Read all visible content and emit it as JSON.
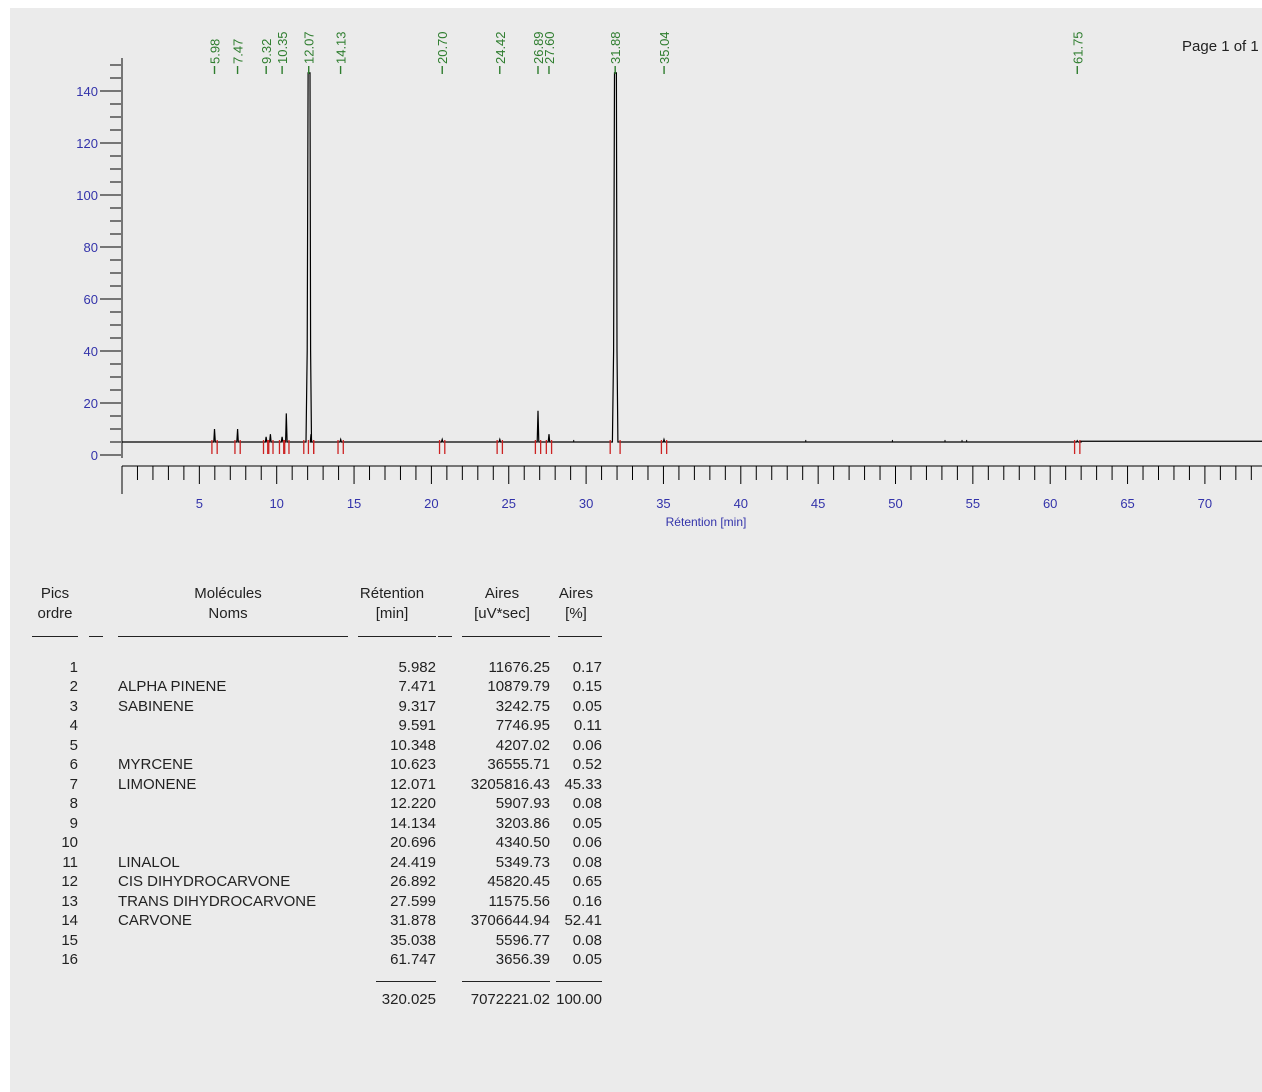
{
  "page_label": "Page 1 of 1",
  "colors": {
    "axis_text": "#3333aa",
    "peak_label": "#2e7d2e",
    "peak_marker": "#cc2222",
    "trace": "#000000",
    "background": "#ebebeb"
  },
  "chart_data": {
    "type": "line",
    "title": "",
    "xlabel": "Rétention [min]",
    "ylabel": "",
    "xlim": [
      0,
      73
    ],
    "ylim": [
      0,
      150
    ],
    "x_ticks": [
      "5",
      "10",
      "15",
      "20",
      "25",
      "30",
      "35",
      "40",
      "45",
      "50",
      "55",
      "60",
      "65",
      "70"
    ],
    "y_ticks": [
      "0",
      "20",
      "40",
      "60",
      "80",
      "100",
      "120",
      "140"
    ],
    "baseline": 5,
    "peak_labels": [
      "5.98",
      "7.47",
      "9.32",
      "10.35",
      "12.07",
      "14.13",
      "20.70",
      "24.42",
      "26.89",
      "27.60",
      "31.88",
      "35.04",
      "61.75"
    ],
    "peaks": [
      {
        "rt": 5.982,
        "height": 10
      },
      {
        "rt": 7.471,
        "height": 10
      },
      {
        "rt": 9.317,
        "height": 7
      },
      {
        "rt": 9.591,
        "height": 8
      },
      {
        "rt": 10.348,
        "height": 7
      },
      {
        "rt": 10.623,
        "height": 16
      },
      {
        "rt": 12.071,
        "height": 147
      },
      {
        "rt": 12.22,
        "height": 8
      },
      {
        "rt": 14.134,
        "height": 6
      },
      {
        "rt": 20.696,
        "height": 6
      },
      {
        "rt": 24.419,
        "height": 6
      },
      {
        "rt": 26.892,
        "height": 17
      },
      {
        "rt": 27.599,
        "height": 8
      },
      {
        "rt": 31.878,
        "height": 147
      },
      {
        "rt": 35.038,
        "height": 6
      },
      {
        "rt": 61.747,
        "height": 5.5
      }
    ]
  },
  "table": {
    "headers": {
      "peak_order": [
        "Pics",
        "ordre"
      ],
      "molecule": [
        "Molécules",
        "Noms"
      ],
      "retention": [
        "Rétention",
        "[min]"
      ],
      "area": [
        "Aires",
        "[uV*sec]"
      ],
      "area_pct": [
        "Aires",
        "[%]"
      ]
    },
    "rows": [
      {
        "num": "1",
        "name": "",
        "retention": "5.982",
        "area": "11676.25",
        "pct": "0.17"
      },
      {
        "num": "2",
        "name": "ALPHA PINENE",
        "retention": "7.471",
        "area": "10879.79",
        "pct": "0.15"
      },
      {
        "num": "3",
        "name": "SABINENE",
        "retention": "9.317",
        "area": "3242.75",
        "pct": "0.05"
      },
      {
        "num": "4",
        "name": "",
        "retention": "9.591",
        "area": "7746.95",
        "pct": "0.11"
      },
      {
        "num": "5",
        "name": "",
        "retention": "10.348",
        "area": "4207.02",
        "pct": "0.06"
      },
      {
        "num": "6",
        "name": "MYRCENE",
        "retention": "10.623",
        "area": "36555.71",
        "pct": "0.52"
      },
      {
        "num": "7",
        "name": "LIMONENE",
        "retention": "12.071",
        "area": "3205816.43",
        "pct": "45.33"
      },
      {
        "num": "8",
        "name": "",
        "retention": "12.220",
        "area": "5907.93",
        "pct": "0.08"
      },
      {
        "num": "9",
        "name": "",
        "retention": "14.134",
        "area": "3203.86",
        "pct": "0.05"
      },
      {
        "num": "10",
        "name": "",
        "retention": "20.696",
        "area": "4340.50",
        "pct": "0.06"
      },
      {
        "num": "11",
        "name": "LINALOL",
        "retention": "24.419",
        "area": "5349.73",
        "pct": "0.08"
      },
      {
        "num": "12",
        "name": "CIS DIHYDROCARVONE",
        "retention": "26.892",
        "area": "45820.45",
        "pct": "0.65"
      },
      {
        "num": "13",
        "name": "TRANS DIHYDROCARVONE",
        "retention": "27.599",
        "area": "11575.56",
        "pct": "0.16"
      },
      {
        "num": "14",
        "name": "CARVONE",
        "retention": "31.878",
        "area": "3706644.94",
        "pct": "52.41"
      },
      {
        "num": "15",
        "name": "",
        "retention": "35.038",
        "area": "5596.77",
        "pct": "0.08"
      },
      {
        "num": "16",
        "name": "",
        "retention": "61.747",
        "area": "3656.39",
        "pct": "0.05"
      }
    ],
    "totals": {
      "retention": "320.025",
      "area": "7072221.02",
      "area_pct": "100.00"
    }
  }
}
